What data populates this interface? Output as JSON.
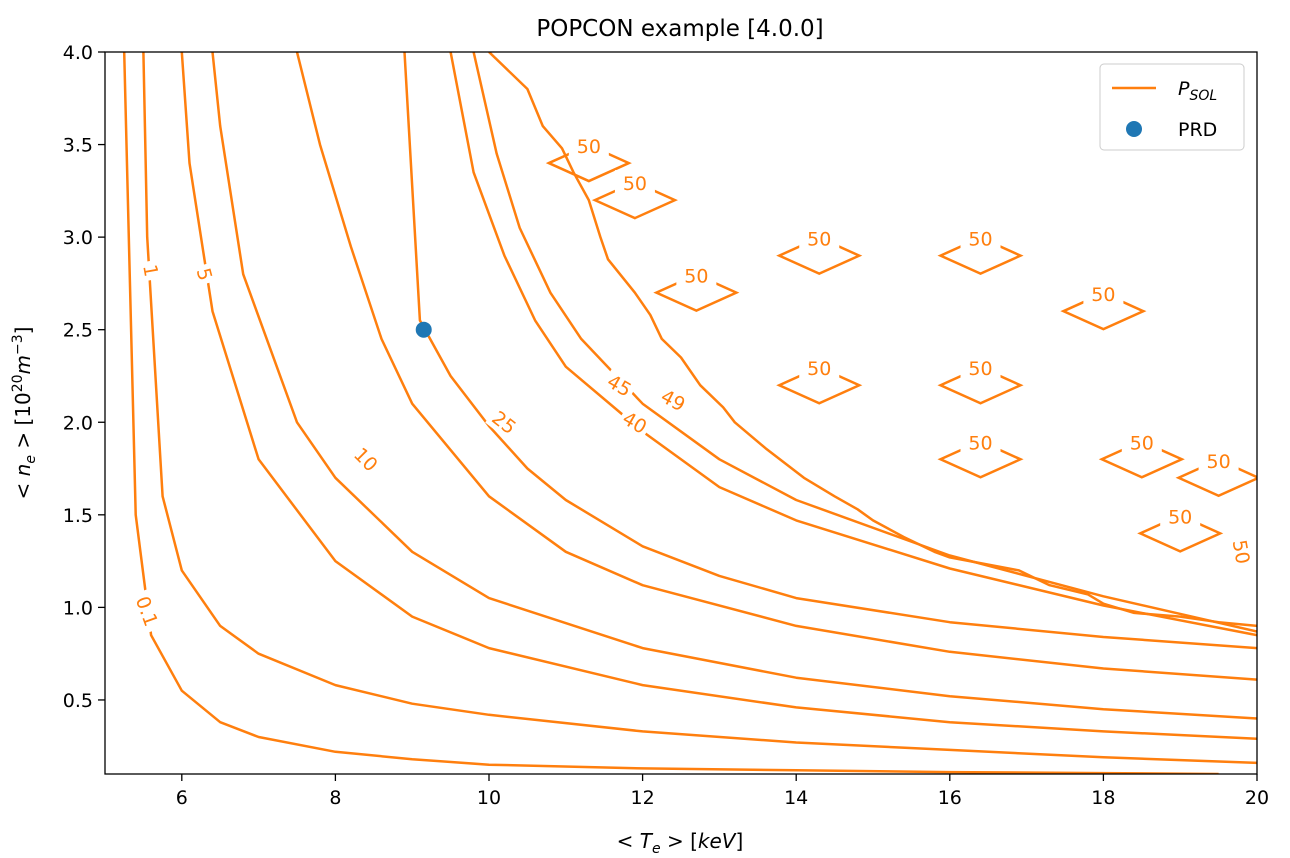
{
  "chart_data": {
    "type": "line",
    "title": "POPCON example [4.0.0]",
    "xlabel": "< T_e >  [keV]",
    "ylabel": "< n_e >  [10^20 m^-3]",
    "xlim": [
      5,
      20
    ],
    "ylim": [
      0.1,
      4.0
    ],
    "xticks": [
      6,
      8,
      10,
      12,
      14,
      16,
      18,
      20
    ],
    "yticks": [
      0.5,
      1.0,
      1.5,
      2.0,
      2.5,
      3.0,
      3.5,
      4.0
    ],
    "xtick_labels": [
      "6",
      "8",
      "10",
      "12",
      "14",
      "16",
      "18",
      "20"
    ],
    "ytick_labels": [
      "0.5",
      "1.0",
      "1.5",
      "2.0",
      "2.5",
      "3.0",
      "3.5",
      "4.0"
    ],
    "grid": false,
    "legend": {
      "placement": "top-right",
      "entries": [
        {
          "label": "P_SOL",
          "marker": "line",
          "color": "#ff7f0e"
        },
        {
          "label": "PRD",
          "marker": "dot",
          "color": "#1f77b4"
        }
      ]
    },
    "contour_color": "#ff7f0e",
    "point_color": "#1f77b4",
    "series": [
      {
        "name": "0.1",
        "x": [
          5.25,
          5.4,
          5.6,
          6.0,
          6.5,
          7.0,
          8.0,
          9.0,
          10.0,
          12.0,
          14.0,
          16.0,
          18.0,
          19.5
        ],
        "y": [
          4.0,
          1.5,
          0.85,
          0.55,
          0.38,
          0.3,
          0.22,
          0.18,
          0.15,
          0.13,
          0.12,
          0.11,
          0.105,
          0.1
        ]
      },
      {
        "name": "1",
        "x": [
          5.5,
          5.55,
          5.75,
          6.0,
          6.5,
          7.0,
          8.0,
          9.0,
          10.0,
          12.0,
          14.0,
          16.0,
          18.0,
          20.0
        ],
        "y": [
          4.0,
          3.0,
          1.6,
          1.2,
          0.9,
          0.75,
          0.58,
          0.48,
          0.42,
          0.33,
          0.27,
          0.23,
          0.19,
          0.16
        ]
      },
      {
        "name": "5",
        "x": [
          6.0,
          6.1,
          6.4,
          7.0,
          8.0,
          9.0,
          10.0,
          12.0,
          14.0,
          16.0,
          18.0,
          20.0
        ],
        "y": [
          4.0,
          3.4,
          2.6,
          1.8,
          1.25,
          0.95,
          0.78,
          0.58,
          0.46,
          0.38,
          0.33,
          0.29
        ]
      },
      {
        "name": "",
        "x": [
          6.4,
          6.5,
          6.8,
          7.5,
          8.0,
          9.0,
          10.0,
          12.0,
          14.0,
          16.0,
          18.0,
          20.0
        ],
        "y": [
          4.0,
          3.6,
          2.8,
          2.0,
          1.7,
          1.3,
          1.05,
          0.78,
          0.62,
          0.52,
          0.45,
          0.4
        ]
      },
      {
        "name": "10",
        "x": [
          7.5,
          7.8,
          8.2,
          8.6,
          9.0,
          10.0,
          11.0,
          12.0,
          14.0,
          16.0,
          18.0,
          20.0
        ],
        "y": [
          4.0,
          3.5,
          2.95,
          2.45,
          2.1,
          1.6,
          1.3,
          1.12,
          0.9,
          0.76,
          0.67,
          0.61
        ]
      },
      {
        "name": "25",
        "x": [
          8.9,
          9.1,
          9.5,
          10.0,
          10.5,
          11.0,
          12.0,
          13.0,
          14.0,
          16.0,
          18.0,
          20.0
        ],
        "y": [
          4.0,
          2.55,
          2.25,
          1.98,
          1.75,
          1.58,
          1.33,
          1.17,
          1.05,
          0.92,
          0.84,
          0.78
        ]
      },
      {
        "name": "40",
        "x": [
          9.5,
          9.8,
          10.2,
          10.6,
          11.0,
          12.0,
          13.0,
          14.0,
          16.0,
          18.0,
          20.0
        ],
        "y": [
          4.0,
          3.35,
          2.9,
          2.55,
          2.3,
          1.95,
          1.65,
          1.47,
          1.21,
          1.01,
          0.85
        ]
      },
      {
        "name": "45",
        "x": [
          9.8,
          10.1,
          10.4,
          10.8,
          11.2,
          12.0,
          13.0,
          14.0,
          16.0,
          18.0,
          20.0
        ],
        "y": [
          4.0,
          3.45,
          3.05,
          2.7,
          2.45,
          2.1,
          1.8,
          1.58,
          1.28,
          1.06,
          0.87
        ]
      },
      {
        "name": "49",
        "x": [
          10.0,
          10.5,
          10.7,
          10.95,
          11.1,
          11.3,
          11.45,
          11.55,
          11.9,
          12.1,
          12.25,
          12.5,
          12.75,
          13.05,
          13.2,
          13.6,
          14.1,
          14.5,
          14.8,
          15.0,
          15.4,
          15.8,
          16.0,
          16.9,
          17.3,
          17.8,
          18.0,
          18.4,
          19.0,
          19.5,
          20.0
        ],
        "y": [
          4.0,
          3.8,
          3.6,
          3.48,
          3.35,
          3.2,
          3.0,
          2.88,
          2.7,
          2.58,
          2.45,
          2.35,
          2.2,
          2.08,
          2.0,
          1.86,
          1.7,
          1.6,
          1.53,
          1.47,
          1.38,
          1.3,
          1.27,
          1.2,
          1.12,
          1.07,
          1.02,
          0.97,
          0.95,
          0.92,
          0.9
        ]
      }
    ],
    "contour_labels": [
      {
        "text": "0.1",
        "x": 5.55,
        "y": 0.98,
        "rotation": 70
      },
      {
        "text": "1",
        "x": 5.6,
        "y": 2.82,
        "rotation": 80
      },
      {
        "text": "5",
        "x": 6.3,
        "y": 2.8,
        "rotation": 75
      },
      {
        "text": "10",
        "x": 8.4,
        "y": 1.8,
        "rotation": 45
      },
      {
        "text": "25",
        "x": 10.2,
        "y": 2.0,
        "rotation": 38
      },
      {
        "text": "40",
        "x": 11.9,
        "y": 2.0,
        "rotation": 30
      },
      {
        "text": "45",
        "x": 11.7,
        "y": 2.2,
        "rotation": 30
      },
      {
        "text": "49",
        "x": 12.4,
        "y": 2.12,
        "rotation": 28
      },
      {
        "text": "50",
        "x": 19.8,
        "y": 1.3,
        "rotation": 80
      }
    ],
    "diamonds": [
      {
        "x": 11.3,
        "y": 3.4,
        "label": "50"
      },
      {
        "x": 11.9,
        "y": 3.2,
        "label": "50"
      },
      {
        "x": 12.7,
        "y": 2.7,
        "label": "50"
      },
      {
        "x": 14.3,
        "y": 2.9,
        "label": "50"
      },
      {
        "x": 16.4,
        "y": 2.9,
        "label": "50"
      },
      {
        "x": 18.0,
        "y": 2.6,
        "label": "50"
      },
      {
        "x": 14.3,
        "y": 2.2,
        "label": "50"
      },
      {
        "x": 16.4,
        "y": 2.2,
        "label": "50"
      },
      {
        "x": 16.4,
        "y": 1.8,
        "label": "50"
      },
      {
        "x": 18.5,
        "y": 1.8,
        "label": "50"
      },
      {
        "x": 19.5,
        "y": 1.7,
        "label": "50"
      },
      {
        "x": 19.0,
        "y": 1.4,
        "label": "50"
      }
    ],
    "point": {
      "label": "PRD",
      "x": 9.15,
      "y": 2.5
    }
  }
}
